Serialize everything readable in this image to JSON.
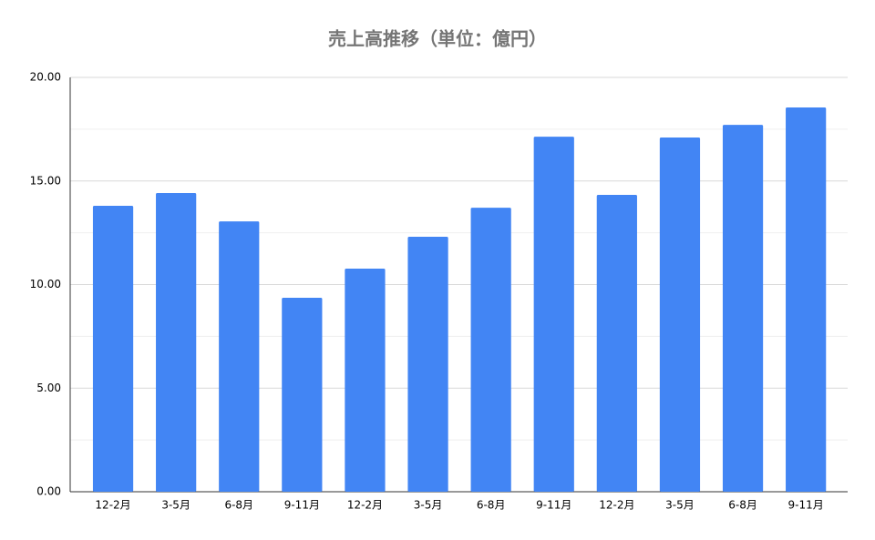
{
  "chart_data": {
    "type": "bar",
    "title": "売上高推移（単位：億円）",
    "categories": [
      "12-2月",
      "3-5月",
      "6-8月",
      "9-11月",
      "12-2月",
      "3-5月",
      "6-8月",
      "9-11月",
      "12-2月",
      "3-5月",
      "6-8月",
      "9-11月"
    ],
    "values": [
      13.8,
      14.42,
      13.05,
      9.36,
      10.77,
      12.31,
      13.71,
      17.14,
      14.33,
      17.1,
      17.71,
      18.55
    ],
    "color": "#4285f4",
    "ylim": [
      0,
      20
    ],
    "yticks": [
      {
        "value": 0,
        "label": "0.00"
      },
      {
        "value": 5,
        "label": "5.00"
      },
      {
        "value": 10,
        "label": "10.00"
      },
      {
        "value": 15,
        "label": "15.00"
      },
      {
        "value": 20,
        "label": "20.00"
      }
    ],
    "minor_yticks": [
      2.5,
      7.5,
      12.5,
      17.5
    ],
    "grid": true
  }
}
